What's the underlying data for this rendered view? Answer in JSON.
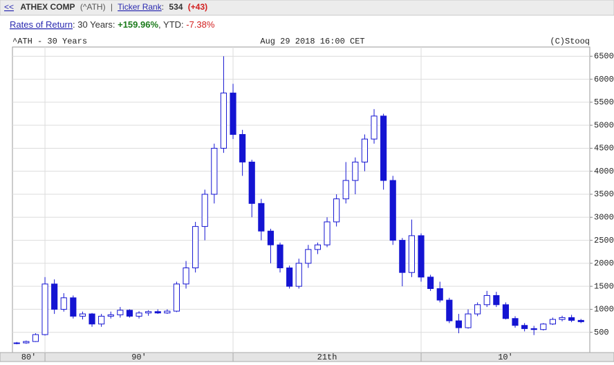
{
  "header": {
    "segments": [
      "<<",
      "ATHEX COMP",
      "(^ATH)",
      "|",
      "Ticker Rank",
      ":",
      "534",
      "(+43)"
    ]
  },
  "returns": {
    "segments": [
      "Rates of Return",
      ": 30 Years: ",
      "+159.96%",
      ", YTD: ",
      "-7.38%"
    ]
  },
  "chart_data": {
    "type": "candlestick",
    "title": "^ATH - 30 Years",
    "date": "Aug 29 2018 16:00 CET",
    "credit": "(C)Stooq",
    "color": "#1414d2",
    "x": [
      1988.5,
      1989,
      1989.5,
      1990,
      1990.5,
      1991,
      1991.5,
      1992,
      1992.5,
      1993,
      1993.5,
      1994,
      1994.5,
      1995,
      1995.5,
      1996,
      1996.5,
      1997,
      1997.5,
      1998,
      1998.5,
      1999,
      1999.5,
      2000,
      2000.5,
      2001,
      2001.5,
      2002,
      2002.5,
      2003,
      2003.5,
      2004,
      2004.5,
      2005,
      2005.5,
      2006,
      2006.5,
      2007,
      2007.5,
      2008,
      2008.5,
      2009,
      2009.5,
      2010,
      2010.5,
      2011,
      2011.5,
      2012,
      2012.5,
      2013,
      2013.5,
      2014,
      2014.5,
      2015,
      2015.5,
      2016,
      2016.5,
      2017,
      2017.5,
      2018,
      2018.5
    ],
    "open": [
      260,
      270,
      300,
      450,
      1550,
      1000,
      1250,
      850,
      900,
      680,
      850,
      880,
      980,
      850,
      920,
      950,
      920,
      960,
      1550,
      1900,
      2800,
      3500,
      4500,
      5700,
      4800,
      4200,
      3300,
      2700,
      2400,
      1900,
      1500,
      2000,
      2300,
      2400,
      2900,
      3400,
      3800,
      4200,
      4700,
      5200,
      3800,
      2500,
      1800,
      2600,
      1700,
      1450,
      1200,
      750,
      600,
      900,
      1100,
      1300,
      1100,
      800,
      650,
      580,
      560,
      680,
      780,
      820,
      760
    ],
    "high": [
      290,
      320,
      480,
      1700,
      1650,
      1350,
      1300,
      950,
      920,
      900,
      950,
      1050,
      1000,
      960,
      980,
      1000,
      1000,
      1600,
      2050,
      2900,
      3600,
      4600,
      6500,
      5900,
      4900,
      4250,
      3400,
      2750,
      2450,
      1950,
      2100,
      2400,
      2450,
      3000,
      3500,
      4200,
      4300,
      4800,
      5350,
      5250,
      3900,
      2550,
      2950,
      2650,
      1750,
      1600,
      1250,
      900,
      1000,
      1150,
      1400,
      1380,
      1150,
      850,
      700,
      640,
      700,
      820,
      860,
      880,
      790
    ],
    "low": [
      240,
      250,
      290,
      430,
      900,
      950,
      800,
      780,
      620,
      620,
      800,
      820,
      820,
      800,
      860,
      900,
      900,
      940,
      1450,
      1800,
      2500,
      3300,
      4400,
      4700,
      3900,
      3000,
      2500,
      2000,
      1800,
      1450,
      1450,
      1900,
      2200,
      2350,
      2800,
      3300,
      3500,
      4000,
      4600,
      3600,
      2400,
      1500,
      1700,
      1600,
      1400,
      1150,
      700,
      480,
      580,
      850,
      1050,
      1050,
      780,
      600,
      520,
      440,
      540,
      660,
      740,
      720,
      700
    ],
    "close": [
      270,
      300,
      450,
      1550,
      1000,
      1250,
      850,
      900,
      680,
      850,
      880,
      980,
      850,
      920,
      950,
      920,
      960,
      1550,
      1900,
      2800,
      3500,
      4500,
      5700,
      4800,
      4200,
      3300,
      2700,
      2400,
      1900,
      1500,
      2000,
      2300,
      2400,
      2900,
      3400,
      3800,
      4200,
      4700,
      5200,
      3800,
      2500,
      1800,
      2600,
      1700,
      1450,
      1200,
      750,
      600,
      900,
      1100,
      1300,
      1100,
      800,
      650,
      580,
      560,
      680,
      780,
      820,
      760,
      730
    ],
    "xlim": [
      1988.27,
      2018.97
    ],
    "xticks": [
      1990,
      2000,
      2010
    ],
    "x_band_labels": [
      "80'",
      "90'",
      "21th",
      "10'"
    ],
    "ylim": [
      60,
      6700
    ],
    "yticks": [
      500,
      1000,
      1500,
      2000,
      2500,
      3000,
      3500,
      4000,
      4500,
      5000,
      5500,
      6000,
      6500
    ],
    "grid": true
  }
}
